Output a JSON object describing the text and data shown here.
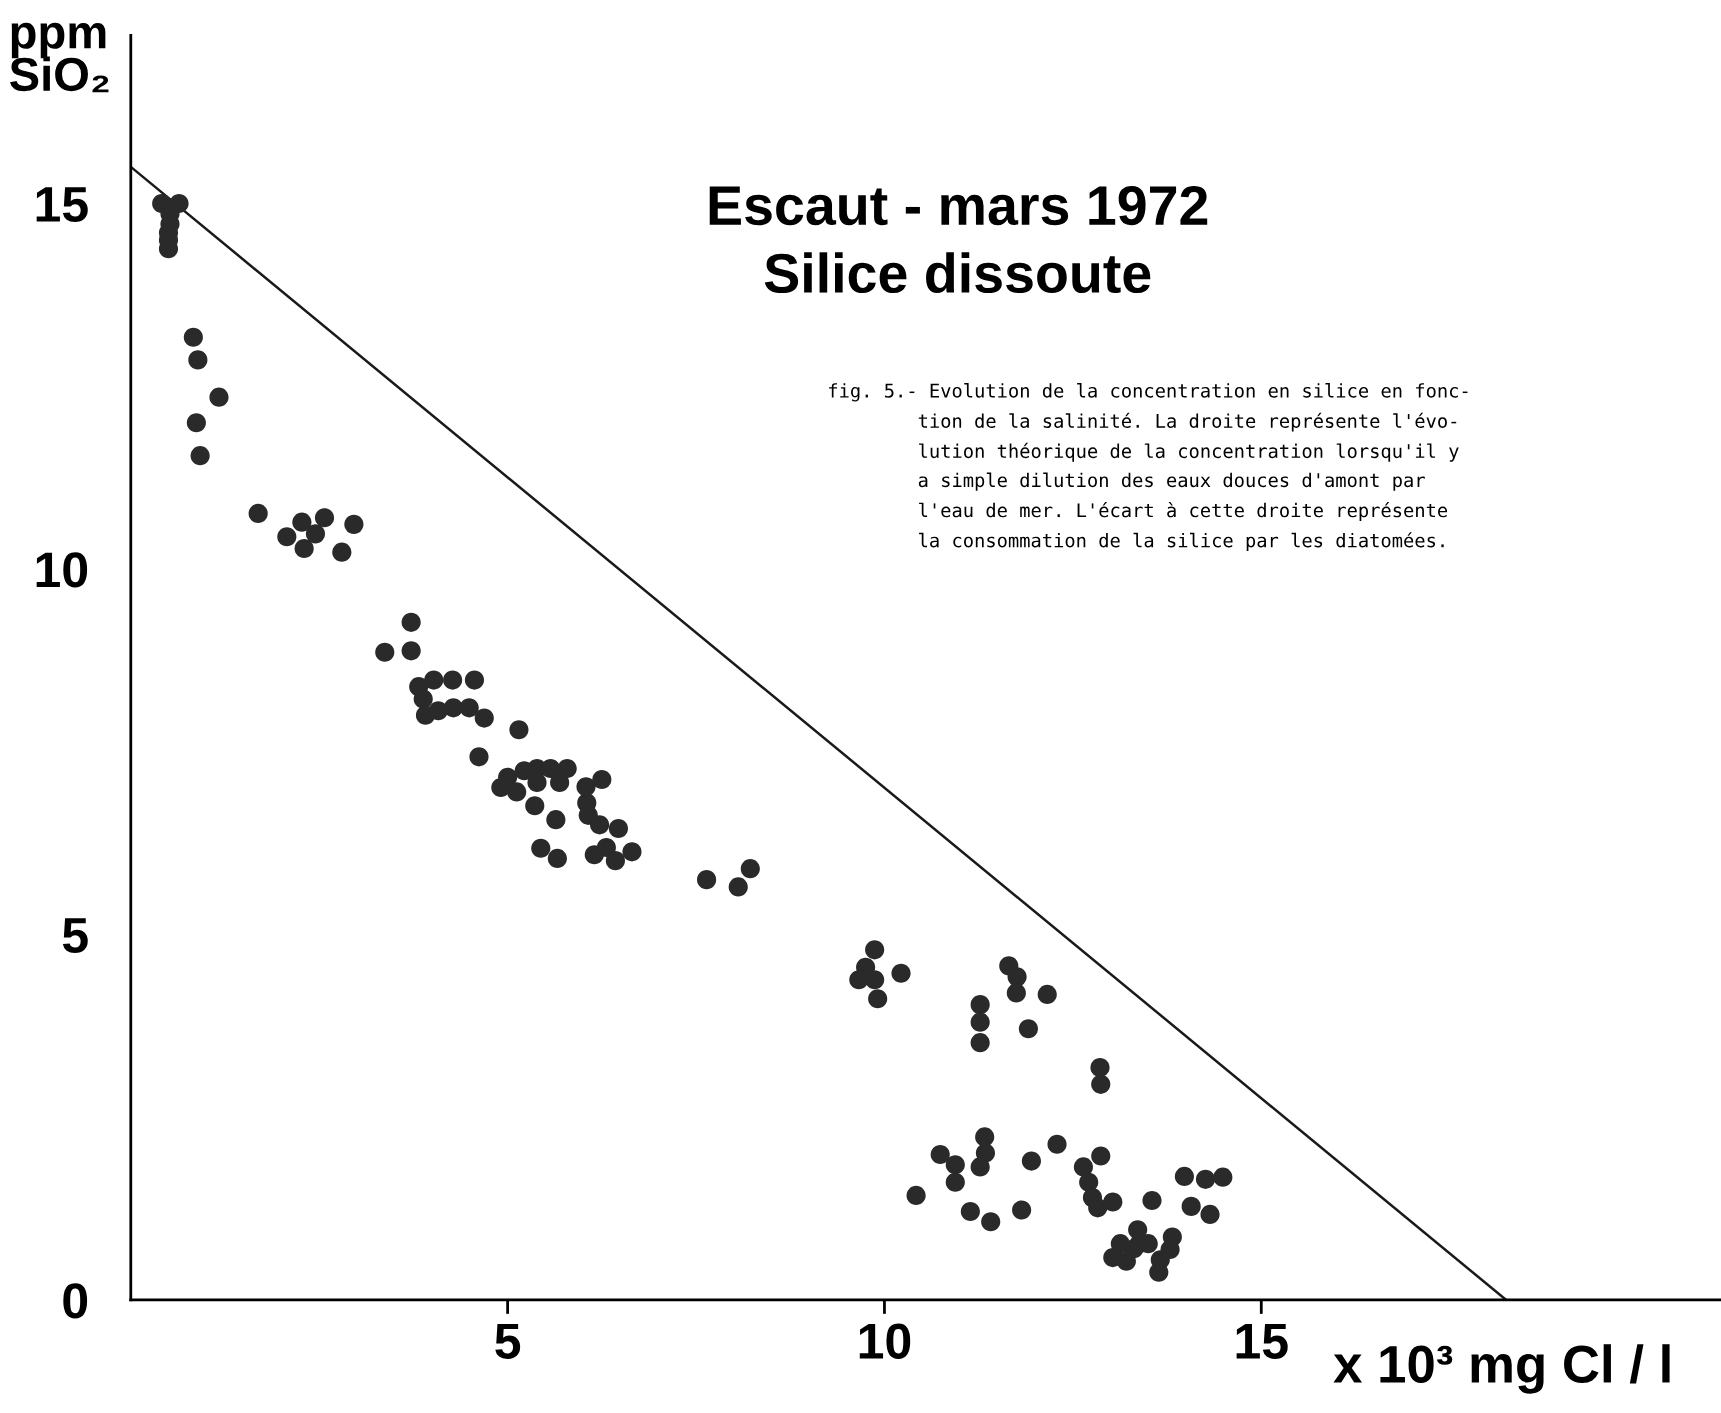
{
  "chart_data": {
    "type": "scatter",
    "title": "Escaut - mars 1972\nSilice dissoute",
    "xlabel": "x 10³ mg Cl / l",
    "ylabel": "ppm\nSiO₂",
    "xlim": [
      0,
      21.1
    ],
    "ylim": [
      0,
      17.3
    ],
    "xticks": [
      5,
      10,
      15
    ],
    "yticks": [
      0,
      5,
      10,
      15
    ],
    "grid": false,
    "annotations": [
      "fig. 5.- Evolution de la concentration en silice en fonc-\n        tion de la salinité. La droite représente l'évo-\n        lution théorique de la concentration lorsqu'il y\n        a simple dilution des eaux douces d'amont par\n        l'eau de mer. L'écart à cette droite représente\n        la consommation de la silice par les diatomées."
    ],
    "series": [
      {
        "marker": "circle",
        "color": "#2a2a2a",
        "x": [
          0.41,
          0.64,
          0.52,
          0.52,
          0.5,
          0.5,
          0.5,
          0.83,
          0.89,
          0.87,
          1.17,
          0.92,
          1.69,
          2.07,
          2.27,
          2.3,
          2.45,
          2.57,
          2.8,
          2.96,
          3.37,
          3.72,
          3.72,
          3.82,
          4.02,
          4.27,
          4.56,
          3.88,
          3.91,
          4.08,
          4.28,
          4.49,
          4.69,
          4.62,
          5.15,
          4.91,
          5.0,
          5.12,
          5.22,
          5.39,
          5.57,
          5.79,
          5.39,
          5.69,
          5.36,
          5.64,
          5.44,
          5.66,
          6.04,
          6.25,
          6.05,
          6.07,
          6.22,
          6.47,
          6.15,
          6.31,
          6.43,
          6.65,
          7.64,
          8.06,
          8.22,
          9.87,
          9.75,
          9.66,
          9.87,
          9.91,
          10.22,
          11.65,
          11.76,
          11.75,
          12.16,
          11.27,
          11.27,
          11.27,
          11.91,
          12.86,
          12.87,
          10.42,
          10.74,
          10.94,
          10.94,
          11.33,
          11.34,
          11.27,
          11.14,
          11.41,
          11.82,
          11.95,
          12.29,
          12.64,
          12.71,
          12.87,
          12.76,
          12.83,
          13.03,
          13.03,
          13.13,
          13.21,
          13.31,
          13.38,
          13.36,
          13.5,
          13.55,
          13.66,
          13.64,
          13.82,
          13.79,
          13.98,
          14.07,
          14.26,
          14.32,
          14.49
        ],
        "values": [
          15.0,
          15.0,
          14.86,
          14.72,
          14.6,
          14.5,
          14.38,
          13.17,
          12.86,
          12.0,
          12.35,
          11.55,
          10.76,
          10.44,
          10.64,
          10.28,
          10.48,
          10.7,
          10.23,
          10.61,
          8.86,
          9.27,
          8.88,
          8.39,
          8.48,
          8.48,
          8.48,
          8.22,
          8.0,
          8.06,
          8.1,
          8.1,
          7.96,
          7.43,
          7.8,
          7.01,
          7.15,
          6.95,
          7.24,
          7.27,
          7.27,
          7.27,
          7.08,
          7.08,
          6.76,
          6.57,
          6.18,
          6.04,
          7.02,
          7.12,
          6.8,
          6.63,
          6.5,
          6.45,
          6.09,
          6.19,
          6.01,
          6.13,
          5.75,
          5.65,
          5.9,
          4.79,
          4.55,
          4.38,
          4.38,
          4.12,
          4.47,
          4.57,
          4.42,
          4.2,
          4.18,
          4.04,
          3.8,
          3.52,
          3.71,
          3.18,
          2.95,
          1.43,
          1.99,
          1.85,
          1.61,
          2.23,
          2.01,
          1.82,
          1.21,
          1.07,
          1.23,
          1.9,
          2.13,
          1.82,
          1.61,
          1.97,
          1.4,
          1.26,
          1.34,
          0.58,
          0.77,
          0.53,
          0.7,
          0.77,
          0.96,
          0.77,
          1.36,
          0.55,
          0.38,
          0.86,
          0.69,
          1.69,
          1.28,
          1.65,
          1.17,
          1.68
        ]
      },
      {
        "type": "line",
        "color": "#1a1a1a",
        "x": [
          0,
          18.25
        ],
        "values": [
          15.5,
          0
        ]
      }
    ]
  }
}
